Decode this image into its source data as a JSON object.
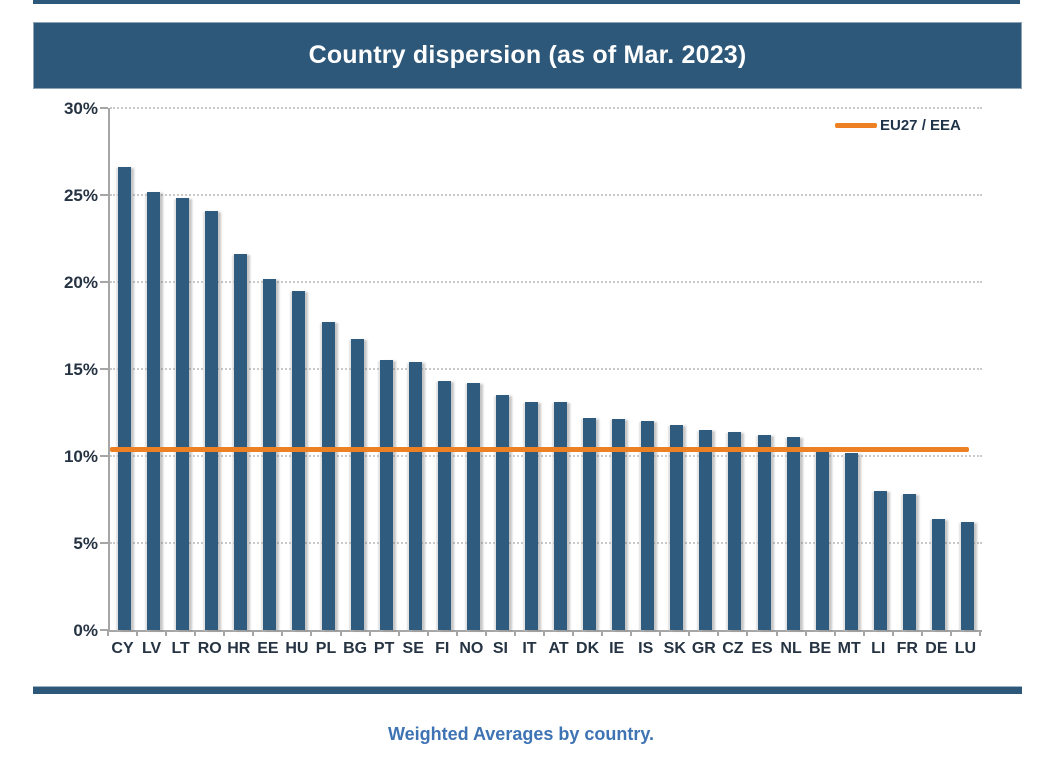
{
  "title": "Country dispersion (as of Mar. 2023)",
  "caption": "Weighted Averages by country.",
  "legend": {
    "label": "EU27 / EEA"
  },
  "colors": {
    "banner": "#2e587a",
    "bar": "#2f5c7e",
    "reference_line": "#ed8022",
    "caption_text": "#3e73b4",
    "axis_text": "#253342"
  },
  "chart_data": {
    "type": "bar",
    "title": "Country dispersion (as of Mar. 2023)",
    "xlabel": "",
    "ylabel": "",
    "ylim": [
      0,
      30
    ],
    "ytick_labels": [
      "0%",
      "5%",
      "10%",
      "15%",
      "20%",
      "25%",
      "30%"
    ],
    "grid": "dotted horizontal at every 5%",
    "legend_position": "top-right inside plot",
    "categories": [
      "CY",
      "LV",
      "LT",
      "RO",
      "HR",
      "EE",
      "HU",
      "PL",
      "BG",
      "PT",
      "SE",
      "FI",
      "NO",
      "SI",
      "IT",
      "AT",
      "DK",
      "IE",
      "IS",
      "SK",
      "GR",
      "CZ",
      "ES",
      "NL",
      "BE",
      "MT",
      "LI",
      "FR",
      "DE",
      "LU"
    ],
    "values": [
      26.6,
      25.2,
      24.8,
      24.1,
      21.6,
      20.2,
      19.5,
      17.7,
      16.7,
      15.5,
      15.4,
      14.3,
      14.2,
      13.5,
      13.1,
      13.1,
      12.2,
      12.1,
      12.0,
      11.8,
      11.5,
      11.4,
      11.2,
      11.1,
      10.3,
      10.2,
      8.0,
      7.8,
      6.4,
      6.2
    ],
    "reference_line": {
      "name": "EU27 / EEA",
      "value": 10.4,
      "unit": "%"
    }
  }
}
